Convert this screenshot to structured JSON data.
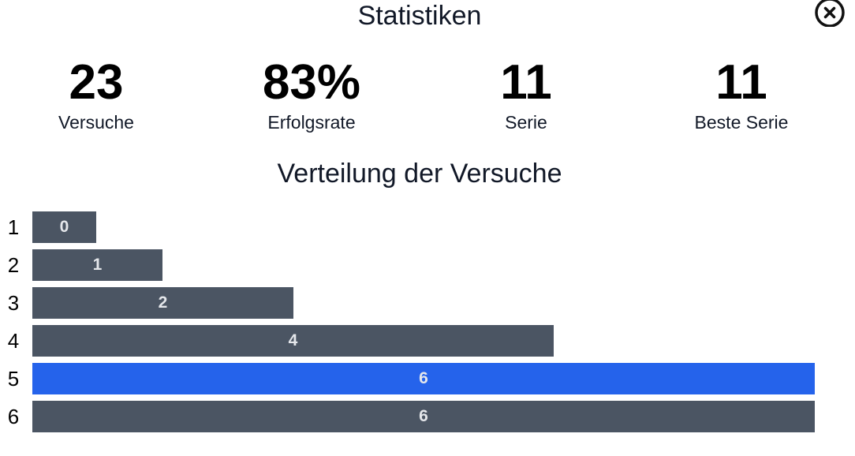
{
  "dialog": {
    "title": "Statistiken",
    "close_icon": "close-circle-icon"
  },
  "stats": [
    {
      "value": "23",
      "label": "Versuche"
    },
    {
      "value": "83%",
      "label": "Erfolgsrate"
    },
    {
      "value": "11",
      "label": "Serie"
    },
    {
      "value": "11",
      "label": "Beste Serie"
    }
  ],
  "distribution": {
    "title": "Verteilung der Versuche"
  },
  "colors": {
    "bar_default": "#4b5563",
    "bar_highlight": "#2563eb",
    "bar_text": "#e5e7eb"
  },
  "chart_data": {
    "type": "bar",
    "orientation": "horizontal",
    "categories": [
      "1",
      "2",
      "3",
      "4",
      "5",
      "6"
    ],
    "values": [
      0,
      1,
      2,
      4,
      6,
      6
    ],
    "highlighted_category": "5",
    "title": "Verteilung der Versuche",
    "xlabel": "",
    "ylabel": "",
    "grid": false
  }
}
